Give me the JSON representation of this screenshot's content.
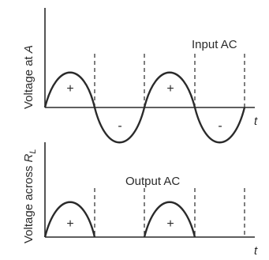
{
  "top_graph": {
    "y_label_prefix": "Voltage at ",
    "y_label_var": "A",
    "x_label": "t",
    "caption": "Input AC",
    "signs": [
      "+",
      "-",
      "+",
      "-"
    ]
  },
  "bottom_graph": {
    "y_label_prefix": "Voltage across ",
    "y_label_var": "R",
    "y_label_sub": "L",
    "x_label": "t",
    "caption": "Output AC",
    "signs": [
      "+",
      "+"
    ]
  }
}
